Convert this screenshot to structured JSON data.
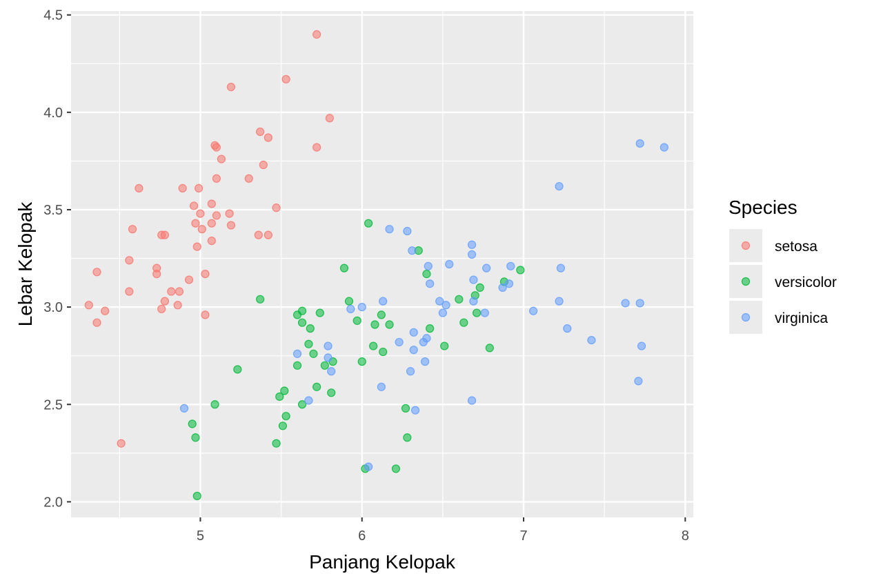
{
  "chart_data": {
    "type": "scatter",
    "xlabel": "Panjang Kelopak",
    "ylabel": "Lebar Kelopak",
    "xlim": [
      4.2,
      8.05
    ],
    "ylim": [
      1.92,
      4.52
    ],
    "xticks": [
      5,
      6,
      7,
      8
    ],
    "xtick_labels": [
      "5",
      "6",
      "7",
      "8"
    ],
    "yticks": [
      2.0,
      2.5,
      3.0,
      3.5,
      4.0,
      4.5
    ],
    "ytick_labels": [
      "2.0",
      "2.5",
      "3.0",
      "3.5",
      "4.0",
      "4.5"
    ],
    "grid": true,
    "legend": {
      "title": "Species",
      "position": "right"
    },
    "series": [
      {
        "name": "setosa",
        "color": "#F8766D",
        "points": [
          [
            4.31,
            3.01
          ],
          [
            4.36,
            3.18
          ],
          [
            4.36,
            2.92
          ],
          [
            4.41,
            2.98
          ],
          [
            4.51,
            2.3
          ],
          [
            4.56,
            3.24
          ],
          [
            4.56,
            3.08
          ],
          [
            4.58,
            3.4
          ],
          [
            4.62,
            3.61
          ],
          [
            4.73,
            3.17
          ],
          [
            4.73,
            3.2
          ],
          [
            4.76,
            3.37
          ],
          [
            4.76,
            2.99
          ],
          [
            4.78,
            3.37
          ],
          [
            4.78,
            3.03
          ],
          [
            4.82,
            3.08
          ],
          [
            4.86,
            3.01
          ],
          [
            4.87,
            3.08
          ],
          [
            4.89,
            3.61
          ],
          [
            4.93,
            3.14
          ],
          [
            4.96,
            3.52
          ],
          [
            4.97,
            3.43
          ],
          [
            4.98,
            3.31
          ],
          [
            4.99,
            3.61
          ],
          [
            5.0,
            3.48
          ],
          [
            5.01,
            3.4
          ],
          [
            5.03,
            3.17
          ],
          [
            5.03,
            2.96
          ],
          [
            5.07,
            3.53
          ],
          [
            5.07,
            3.43
          ],
          [
            5.07,
            3.34
          ],
          [
            5.09,
            3.83
          ],
          [
            5.1,
            3.82
          ],
          [
            5.1,
            3.66
          ],
          [
            5.1,
            3.47
          ],
          [
            5.13,
            3.76
          ],
          [
            5.18,
            3.48
          ],
          [
            5.19,
            3.42
          ],
          [
            5.19,
            4.13
          ],
          [
            5.3,
            3.66
          ],
          [
            5.36,
            3.37
          ],
          [
            5.37,
            3.9
          ],
          [
            5.39,
            3.73
          ],
          [
            5.42,
            3.37
          ],
          [
            5.42,
            3.87
          ],
          [
            5.47,
            3.51
          ],
          [
            5.53,
            4.17
          ],
          [
            5.72,
            3.82
          ],
          [
            5.72,
            4.4
          ],
          [
            5.8,
            3.97
          ]
        ]
      },
      {
        "name": "versicolor",
        "color": "#00BA38",
        "points": [
          [
            4.95,
            2.4
          ],
          [
            4.97,
            2.33
          ],
          [
            4.98,
            2.03
          ],
          [
            5.09,
            2.5
          ],
          [
            5.23,
            2.68
          ],
          [
            5.37,
            3.04
          ],
          [
            5.47,
            2.3
          ],
          [
            5.49,
            2.54
          ],
          [
            5.51,
            2.39
          ],
          [
            5.52,
            2.57
          ],
          [
            5.53,
            2.44
          ],
          [
            5.6,
            2.7
          ],
          [
            5.6,
            2.96
          ],
          [
            5.63,
            2.5
          ],
          [
            5.63,
            2.92
          ],
          [
            5.63,
            2.98
          ],
          [
            5.67,
            2.81
          ],
          [
            5.68,
            2.89
          ],
          [
            5.7,
            2.76
          ],
          [
            5.72,
            2.59
          ],
          [
            5.74,
            2.97
          ],
          [
            5.77,
            2.7
          ],
          [
            5.81,
            2.56
          ],
          [
            5.82,
            2.72
          ],
          [
            5.89,
            3.2
          ],
          [
            5.92,
            3.03
          ],
          [
            5.97,
            2.93
          ],
          [
            6.0,
            2.72
          ],
          [
            6.02,
            2.17
          ],
          [
            6.04,
            3.43
          ],
          [
            6.07,
            2.8
          ],
          [
            6.08,
            2.91
          ],
          [
            6.12,
            2.96
          ],
          [
            6.13,
            2.77
          ],
          [
            6.17,
            2.91
          ],
          [
            6.21,
            2.17
          ],
          [
            6.27,
            2.48
          ],
          [
            6.28,
            2.33
          ],
          [
            6.35,
            3.29
          ],
          [
            6.4,
            3.17
          ],
          [
            6.42,
            2.89
          ],
          [
            6.51,
            2.8
          ],
          [
            6.6,
            3.04
          ],
          [
            6.63,
            2.92
          ],
          [
            6.7,
            3.06
          ],
          [
            6.71,
            2.97
          ],
          [
            6.73,
            3.1
          ],
          [
            6.79,
            2.79
          ],
          [
            6.88,
            3.13
          ],
          [
            6.98,
            3.19
          ]
        ]
      },
      {
        "name": "virginica",
        "color": "#619CFF",
        "points": [
          [
            4.9,
            2.48
          ],
          [
            5.6,
            2.76
          ],
          [
            5.67,
            2.52
          ],
          [
            5.79,
            2.8
          ],
          [
            5.79,
            2.74
          ],
          [
            5.81,
            2.67
          ],
          [
            5.93,
            2.99
          ],
          [
            6.0,
            3.0
          ],
          [
            6.04,
            2.18
          ],
          [
            6.12,
            2.59
          ],
          [
            6.13,
            3.03
          ],
          [
            6.17,
            3.4
          ],
          [
            6.23,
            2.82
          ],
          [
            6.28,
            3.39
          ],
          [
            6.3,
            2.67
          ],
          [
            6.31,
            3.29
          ],
          [
            6.32,
            2.87
          ],
          [
            6.32,
            2.78
          ],
          [
            6.33,
            2.47
          ],
          [
            6.38,
            2.82
          ],
          [
            6.39,
            2.72
          ],
          [
            6.4,
            2.84
          ],
          [
            6.41,
            3.21
          ],
          [
            6.42,
            3.12
          ],
          [
            6.48,
            3.03
          ],
          [
            6.5,
            2.97
          ],
          [
            6.52,
            3.01
          ],
          [
            6.54,
            3.22
          ],
          [
            6.68,
            2.52
          ],
          [
            6.68,
            3.32
          ],
          [
            6.68,
            3.27
          ],
          [
            6.69,
            3.14
          ],
          [
            6.69,
            3.03
          ],
          [
            6.76,
            2.97
          ],
          [
            6.77,
            3.2
          ],
          [
            6.87,
            3.1
          ],
          [
            6.91,
            3.12
          ],
          [
            6.92,
            3.21
          ],
          [
            7.06,
            2.98
          ],
          [
            7.22,
            3.03
          ],
          [
            7.22,
            3.62
          ],
          [
            7.23,
            3.2
          ],
          [
            7.27,
            2.89
          ],
          [
            7.42,
            2.83
          ],
          [
            7.63,
            3.02
          ],
          [
            7.71,
            2.62
          ],
          [
            7.72,
            3.02
          ],
          [
            7.72,
            3.84
          ],
          [
            7.73,
            2.8
          ],
          [
            7.87,
            3.82
          ]
        ]
      }
    ]
  }
}
